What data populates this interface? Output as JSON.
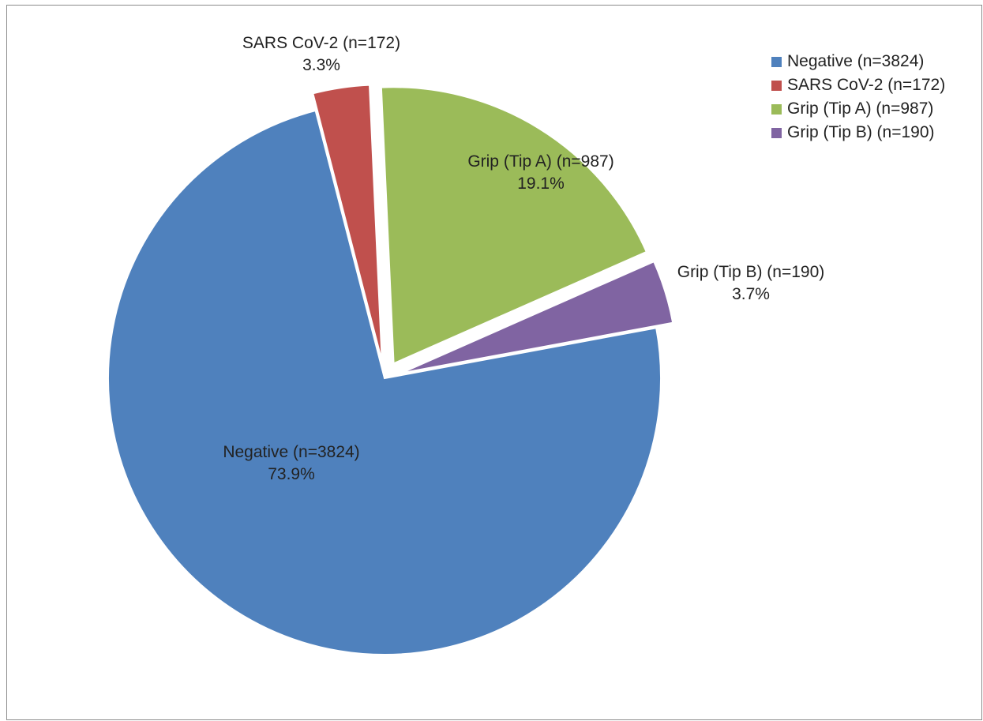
{
  "chart_data": {
    "type": "pie",
    "title": "",
    "slices": [
      {
        "label": "Negative (n=3824)",
        "value": 73.9,
        "pct_label": "73.9%",
        "color": "#4F81BD"
      },
      {
        "label": "SARS CoV-2 (n=172)",
        "value": 3.3,
        "pct_label": "3.3%",
        "color": "#C0504D"
      },
      {
        "label": "Grip (Tip A) (n=987)",
        "value": 19.1,
        "pct_label": "19.1%",
        "color": "#9BBB59"
      },
      {
        "label": "Grip (Tip B) (n=190)",
        "value": 3.7,
        "pct_label": "3.7%",
        "color": "#8064A2"
      }
    ],
    "legend_placement": "top-right"
  }
}
